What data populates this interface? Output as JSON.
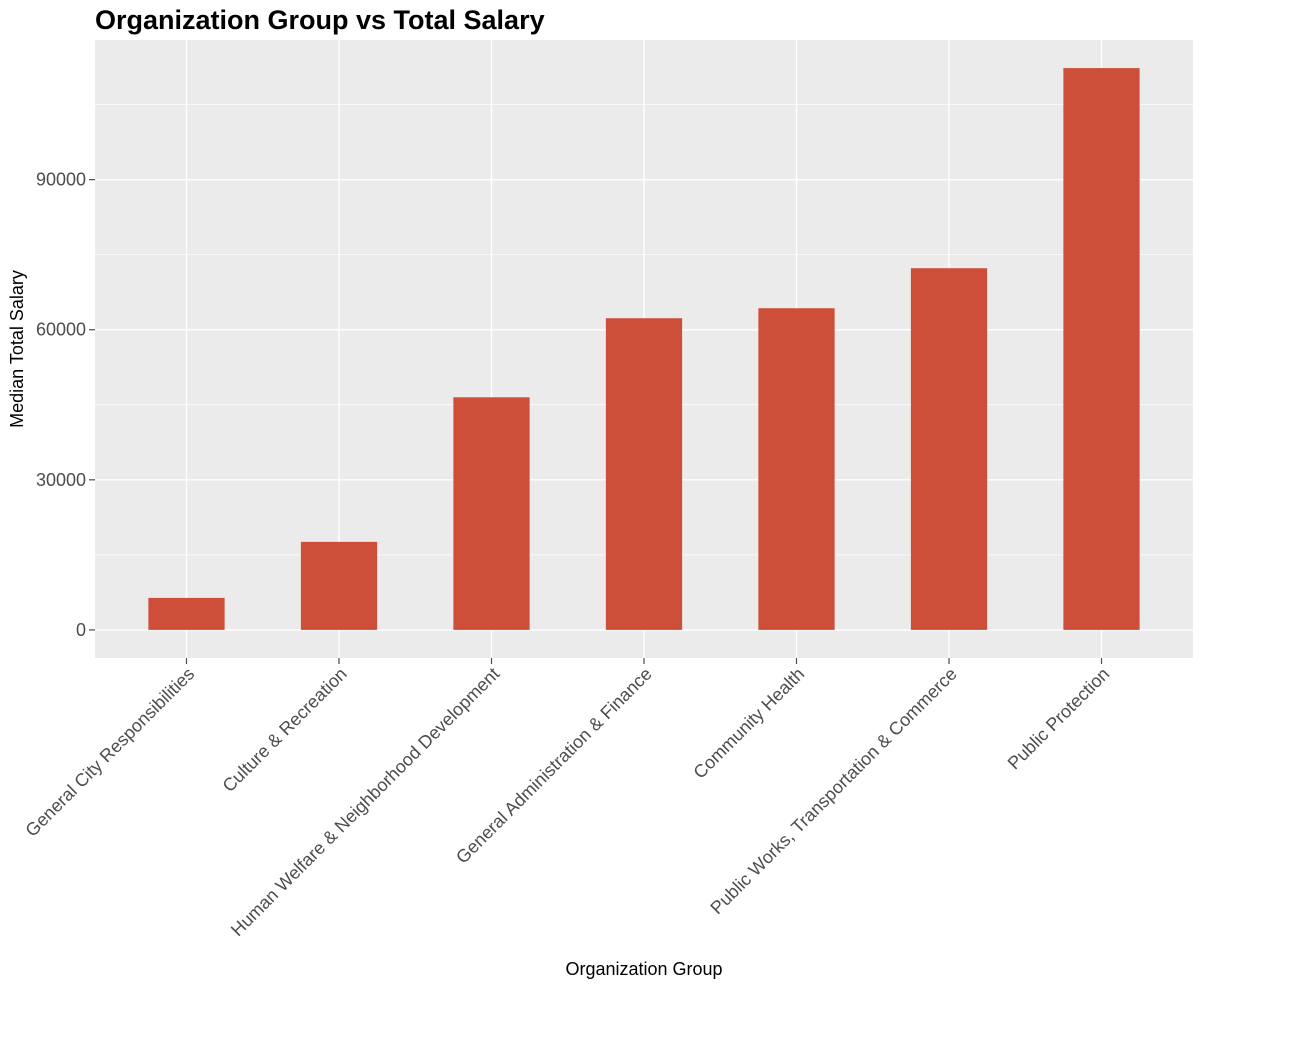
{
  "chart_data": {
    "type": "bar",
    "title": "Organization Group vs Total Salary",
    "xlabel": "Organization Group",
    "ylabel": "Median Total Salary",
    "categories": [
      "General City Responsibilities",
      "Culture & Recreation",
      "Human Welfare & Neighborhood Development",
      "General Administration & Finance",
      "Community Health",
      "Public Works, Transportation & Commerce",
      "Public Protection"
    ],
    "values": [
      6400,
      17600,
      46500,
      62300,
      64300,
      72300,
      112300
    ],
    "yticks": [
      0,
      30000,
      60000,
      90000
    ],
    "ytick_labels": [
      "0",
      "30000",
      "60000",
      "90000"
    ],
    "ylim": [
      -5615,
      117915
    ],
    "grid": true,
    "colors": {
      "bar": "#CD4F3A",
      "panel": "#EBEBEB",
      "grid": "#FFFFFF",
      "tick_text": "#4D4D4D",
      "text": "#000000"
    }
  }
}
